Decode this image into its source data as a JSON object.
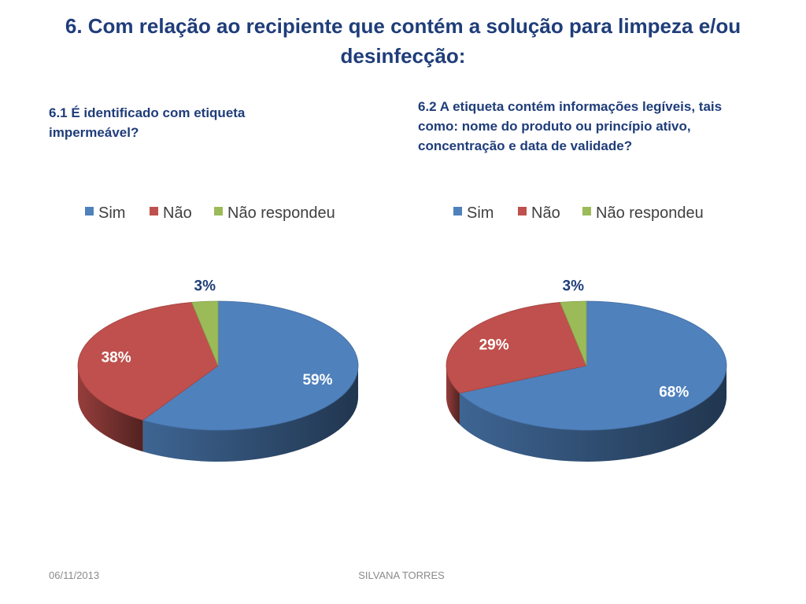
{
  "slide": {
    "title": "6. Com relação ao recipiente que contém a solução para limpeza e/ou desinfecção:",
    "footer_date": "06/11/2013",
    "footer_author": "SILVANA TORRES"
  },
  "questions": [
    "6.1 É identificado com etiqueta impermeável?",
    "6.2 A etiqueta contém informações legíveis, tais como: nome do produto ou princípio ativo, concentração e data de validade?"
  ],
  "chart_data": [
    {
      "type": "pie",
      "categories": [
        "Sim",
        "Não",
        "Não respondeu"
      ],
      "values": [
        59,
        38,
        3
      ],
      "value_labels": [
        "59%",
        "38%",
        "3%"
      ],
      "colors": [
        "#4F81BD",
        "#C0504D",
        "#9BBB59"
      ],
      "legend_position": "top"
    },
    {
      "type": "pie",
      "categories": [
        "Sim",
        "Não",
        "Não respondeu"
      ],
      "values": [
        68,
        29,
        3
      ],
      "value_labels": [
        "68%",
        "29%",
        "3%"
      ],
      "colors": [
        "#4F81BD",
        "#C0504D",
        "#9BBB59"
      ],
      "legend_position": "top"
    }
  ]
}
